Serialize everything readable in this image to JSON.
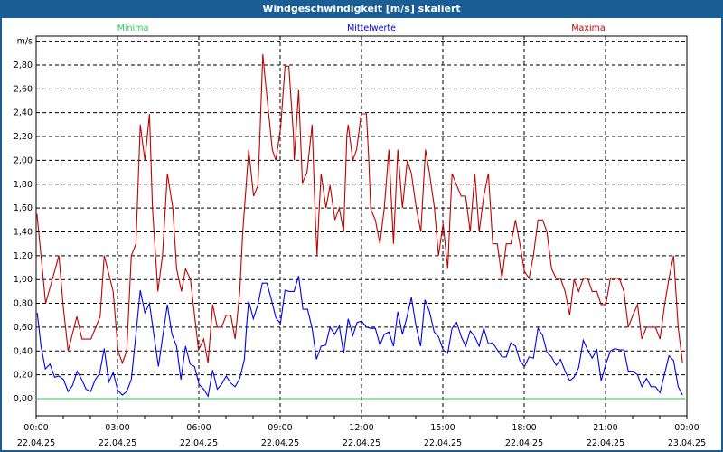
{
  "window": {
    "title": "Windgeschwindigkeit [m/s] skaliert"
  },
  "chart_data": {
    "type": "line",
    "title": "Windgeschwindigkeit [m/s] skaliert",
    "ylabel": "m/s",
    "xlabel": "",
    "ylim": [
      0,
      3.0
    ],
    "xlim_hours": [
      0,
      24
    ],
    "grid": true,
    "y_ticks": [
      "0,00",
      "0,20",
      "0,40",
      "0,60",
      "0,80",
      "1,00",
      "1,20",
      "1,40",
      "1,60",
      "1,80",
      "2,00",
      "2,20",
      "2,40",
      "2,60",
      "2,80"
    ],
    "x_ticks": [
      {
        "time": "00:00",
        "date": "22.04.25"
      },
      {
        "time": "03:00",
        "date": "22.04.25"
      },
      {
        "time": "06:00",
        "date": "22.04.25"
      },
      {
        "time": "09:00",
        "date": "22.04.25"
      },
      {
        "time": "12:00",
        "date": "22.04.25"
      },
      {
        "time": "15:00",
        "date": "22.04.25"
      },
      {
        "time": "18:00",
        "date": "22.04.25"
      },
      {
        "time": "21:00",
        "date": "22.04.25"
      },
      {
        "time": "00:00",
        "date": "23.04.25"
      }
    ],
    "legend_placement": "top",
    "series": [
      {
        "name": "Minima",
        "color": "#22cc55",
        "points": [
          [
            0,
            0
          ],
          [
            23.84,
            0
          ]
        ]
      },
      {
        "name": "Mittelwerte",
        "color": "#0000ee",
        "points": [
          [
            0.04,
            0.72
          ],
          [
            0.18,
            0.44
          ],
          [
            0.34,
            0.25
          ],
          [
            0.51,
            0.29
          ],
          [
            0.68,
            0.18
          ],
          [
            0.84,
            0.19
          ],
          [
            1.01,
            0.16
          ],
          [
            1.18,
            0.06
          ],
          [
            1.34,
            0.11
          ],
          [
            1.51,
            0.23
          ],
          [
            1.68,
            0.16
          ],
          [
            1.84,
            0.08
          ],
          [
            2.01,
            0.06
          ],
          [
            2.18,
            0.16
          ],
          [
            2.34,
            0.21
          ],
          [
            2.51,
            0.42
          ],
          [
            2.68,
            0.14
          ],
          [
            2.84,
            0.22
          ],
          [
            3.01,
            0.07
          ],
          [
            3.18,
            0.03
          ],
          [
            3.34,
            0.06
          ],
          [
            3.51,
            0.16
          ],
          [
            3.68,
            0.54
          ],
          [
            3.84,
            0.91
          ],
          [
            4.01,
            0.72
          ],
          [
            4.18,
            0.8
          ],
          [
            4.34,
            0.54
          ],
          [
            4.51,
            0.27
          ],
          [
            4.68,
            0.54
          ],
          [
            4.84,
            0.79
          ],
          [
            5.01,
            0.54
          ],
          [
            5.18,
            0.44
          ],
          [
            5.34,
            0.16
          ],
          [
            5.51,
            0.44
          ],
          [
            5.68,
            0.29
          ],
          [
            5.84,
            0.27
          ],
          [
            6.01,
            0.12
          ],
          [
            6.18,
            0.08
          ],
          [
            6.34,
            0.02
          ],
          [
            6.51,
            0.24
          ],
          [
            6.68,
            0.08
          ],
          [
            6.84,
            0.12
          ],
          [
            7.01,
            0.19
          ],
          [
            7.18,
            0.13
          ],
          [
            7.34,
            0.1
          ],
          [
            7.51,
            0.17
          ],
          [
            7.68,
            0.33
          ],
          [
            7.77,
            0.64
          ],
          [
            7.84,
            0.82
          ],
          [
            8.01,
            0.67
          ],
          [
            8.18,
            0.79
          ],
          [
            8.34,
            0.97
          ],
          [
            8.51,
            0.97
          ],
          [
            8.68,
            0.83
          ],
          [
            8.84,
            0.68
          ],
          [
            9.01,
            0.63
          ],
          [
            9.18,
            0.91
          ],
          [
            9.34,
            0.9
          ],
          [
            9.51,
            0.9
          ],
          [
            9.68,
            1.03
          ],
          [
            9.84,
            0.75
          ],
          [
            10.01,
            0.75
          ],
          [
            10.18,
            0.59
          ],
          [
            10.34,
            0.33
          ],
          [
            10.51,
            0.44
          ],
          [
            10.68,
            0.45
          ],
          [
            10.84,
            0.6
          ],
          [
            11.01,
            0.54
          ],
          [
            11.18,
            0.61
          ],
          [
            11.34,
            0.38
          ],
          [
            11.51,
            0.67
          ],
          [
            11.68,
            0.53
          ],
          [
            11.84,
            0.64
          ],
          [
            12.01,
            0.65
          ],
          [
            12.18,
            0.6
          ],
          [
            12.34,
            0.59
          ],
          [
            12.51,
            0.59
          ],
          [
            12.68,
            0.45
          ],
          [
            12.84,
            0.54
          ],
          [
            13.01,
            0.56
          ],
          [
            13.18,
            0.44
          ],
          [
            13.34,
            0.73
          ],
          [
            13.51,
            0.54
          ],
          [
            13.68,
            0.69
          ],
          [
            13.84,
            0.85
          ],
          [
            14.01,
            0.61
          ],
          [
            14.18,
            0.44
          ],
          [
            14.34,
            0.83
          ],
          [
            14.51,
            0.73
          ],
          [
            14.68,
            0.56
          ],
          [
            14.84,
            0.52
          ],
          [
            15.01,
            0.41
          ],
          [
            15.18,
            0.38
          ],
          [
            15.34,
            0.59
          ],
          [
            15.51,
            0.64
          ],
          [
            15.68,
            0.52
          ],
          [
            15.84,
            0.44
          ],
          [
            16.01,
            0.57
          ],
          [
            16.18,
            0.52
          ],
          [
            16.34,
            0.44
          ],
          [
            16.51,
            0.59
          ],
          [
            16.68,
            0.46
          ],
          [
            16.84,
            0.47
          ],
          [
            17.01,
            0.41
          ],
          [
            17.18,
            0.35
          ],
          [
            17.34,
            0.35
          ],
          [
            17.51,
            0.47
          ],
          [
            17.68,
            0.44
          ],
          [
            17.84,
            0.32
          ],
          [
            18.01,
            0.27
          ],
          [
            18.18,
            0.35
          ],
          [
            18.34,
            0.34
          ],
          [
            18.51,
            0.59
          ],
          [
            18.68,
            0.53
          ],
          [
            18.84,
            0.39
          ],
          [
            19.01,
            0.35
          ],
          [
            19.18,
            0.28
          ],
          [
            19.34,
            0.33
          ],
          [
            19.51,
            0.23
          ],
          [
            19.68,
            0.15
          ],
          [
            19.84,
            0.18
          ],
          [
            20.01,
            0.26
          ],
          [
            20.18,
            0.49
          ],
          [
            20.34,
            0.41
          ],
          [
            20.51,
            0.34
          ],
          [
            20.68,
            0.41
          ],
          [
            20.84,
            0.15
          ],
          [
            21.01,
            0.29
          ],
          [
            21.18,
            0.4
          ],
          [
            21.34,
            0.42
          ],
          [
            21.51,
            0.41
          ],
          [
            21.68,
            0.41
          ],
          [
            21.84,
            0.23
          ],
          [
            22.01,
            0.23
          ],
          [
            22.18,
            0.2
          ],
          [
            22.34,
            0.1
          ],
          [
            22.51,
            0.17
          ],
          [
            22.68,
            0.1
          ],
          [
            22.84,
            0.1
          ],
          [
            23.01,
            0.05
          ],
          [
            23.18,
            0.21
          ],
          [
            23.34,
            0.36
          ],
          [
            23.51,
            0.32
          ],
          [
            23.68,
            0.1
          ],
          [
            23.84,
            0.03
          ]
        ]
      },
      {
        "name": "Maxima",
        "color": "#c00000",
        "points": [
          [
            0.03,
            1.55
          ],
          [
            0.35,
            0.8
          ],
          [
            0.84,
            1.2
          ],
          [
            1.0,
            0.77
          ],
          [
            1.18,
            0.4
          ],
          [
            1.5,
            0.69
          ],
          [
            1.69,
            0.5
          ],
          [
            2.02,
            0.5
          ],
          [
            2.36,
            0.69
          ],
          [
            2.51,
            1.2
          ],
          [
            2.84,
            0.9
          ],
          [
            3.02,
            0.4
          ],
          [
            3.18,
            0.3
          ],
          [
            3.34,
            0.4
          ],
          [
            3.51,
            1.2
          ],
          [
            3.68,
            1.3
          ],
          [
            3.84,
            2.3
          ],
          [
            4.01,
            2.0
          ],
          [
            4.18,
            2.39
          ],
          [
            4.29,
            1.6
          ],
          [
            4.49,
            0.9
          ],
          [
            4.66,
            1.2
          ],
          [
            4.84,
            1.89
          ],
          [
            5.04,
            1.6
          ],
          [
            5.18,
            1.09
          ],
          [
            5.36,
            0.9
          ],
          [
            5.51,
            1.09
          ],
          [
            5.69,
            1.0
          ],
          [
            5.99,
            0.41
          ],
          [
            6.18,
            0.5
          ],
          [
            6.34,
            0.3
          ],
          [
            6.51,
            0.79
          ],
          [
            6.68,
            0.6
          ],
          [
            6.84,
            0.6
          ],
          [
            7.01,
            0.7
          ],
          [
            7.18,
            0.7
          ],
          [
            7.34,
            0.5
          ],
          [
            7.51,
            0.9
          ],
          [
            7.62,
            1.4
          ],
          [
            7.71,
            1.68
          ],
          [
            7.8,
            1.96
          ],
          [
            7.84,
            2.09
          ],
          [
            7.96,
            1.83
          ],
          [
            8.02,
            1.7
          ],
          [
            8.18,
            1.79
          ],
          [
            8.24,
            2.13
          ],
          [
            8.36,
            2.89
          ],
          [
            8.43,
            2.72
          ],
          [
            8.58,
            2.38
          ],
          [
            8.71,
            2.09
          ],
          [
            8.84,
            2.0
          ],
          [
            9.02,
            2.28
          ],
          [
            9.18,
            2.79
          ],
          [
            9.32,
            2.79
          ],
          [
            9.49,
            2.21
          ],
          [
            9.52,
            2.0
          ],
          [
            9.68,
            2.59
          ],
          [
            9.82,
            1.81
          ],
          [
            9.99,
            1.9
          ],
          [
            10.18,
            2.3
          ],
          [
            10.29,
            1.55
          ],
          [
            10.36,
            1.2
          ],
          [
            10.43,
            1.55
          ],
          [
            10.51,
            1.89
          ],
          [
            10.69,
            1.6
          ],
          [
            10.84,
            1.79
          ],
          [
            11.02,
            1.5
          ],
          [
            11.18,
            1.6
          ],
          [
            11.34,
            1.4
          ],
          [
            11.46,
            2.21
          ],
          [
            11.51,
            2.3
          ],
          [
            11.68,
            2.0
          ],
          [
            11.82,
            2.09
          ],
          [
            11.99,
            2.39
          ],
          [
            12.18,
            2.39
          ],
          [
            12.27,
            2.0
          ],
          [
            12.34,
            1.59
          ],
          [
            12.51,
            1.5
          ],
          [
            12.68,
            1.3
          ],
          [
            12.84,
            1.6
          ],
          [
            13.01,
            2.09
          ],
          [
            13.18,
            1.3
          ],
          [
            13.34,
            2.09
          ],
          [
            13.51,
            1.6
          ],
          [
            13.69,
            2.0
          ],
          [
            13.84,
            1.89
          ],
          [
            14.02,
            1.6
          ],
          [
            14.19,
            1.4
          ],
          [
            14.36,
            2.09
          ],
          [
            14.51,
            1.89
          ],
          [
            14.69,
            1.6
          ],
          [
            14.84,
            1.2
          ],
          [
            15.01,
            1.47
          ],
          [
            15.18,
            1.09
          ],
          [
            15.34,
            1.89
          ],
          [
            15.51,
            1.79
          ],
          [
            15.68,
            1.7
          ],
          [
            15.84,
            1.7
          ],
          [
            16.01,
            1.4
          ],
          [
            16.18,
            1.89
          ],
          [
            16.34,
            1.4
          ],
          [
            16.51,
            1.7
          ],
          [
            16.68,
            1.89
          ],
          [
            16.84,
            1.3
          ],
          [
            17.01,
            1.3
          ],
          [
            17.18,
            1.01
          ],
          [
            17.34,
            1.3
          ],
          [
            17.51,
            1.3
          ],
          [
            17.68,
            1.5
          ],
          [
            17.84,
            1.3
          ],
          [
            18.01,
            1.07
          ],
          [
            18.18,
            1.01
          ],
          [
            18.34,
            1.2
          ],
          [
            18.51,
            1.5
          ],
          [
            18.68,
            1.5
          ],
          [
            18.84,
            1.4
          ],
          [
            19.01,
            1.09
          ],
          [
            19.18,
            1.01
          ],
          [
            19.34,
            1.01
          ],
          [
            19.51,
            0.9
          ],
          [
            19.68,
            0.7
          ],
          [
            19.84,
            1.0
          ],
          [
            20.01,
            0.9
          ],
          [
            20.18,
            1.01
          ],
          [
            20.34,
            1.01
          ],
          [
            20.51,
            0.9
          ],
          [
            20.68,
            0.9
          ],
          [
            20.84,
            0.79
          ],
          [
            21.01,
            0.79
          ],
          [
            21.18,
            1.01
          ],
          [
            21.34,
            1.01
          ],
          [
            21.51,
            1.01
          ],
          [
            21.68,
            0.9
          ],
          [
            21.84,
            0.6
          ],
          [
            22.01,
            0.7
          ],
          [
            22.18,
            0.79
          ],
          [
            22.34,
            0.5
          ],
          [
            22.51,
            0.6
          ],
          [
            22.68,
            0.6
          ],
          [
            22.84,
            0.6
          ],
          [
            23.01,
            0.5
          ],
          [
            23.18,
            0.79
          ],
          [
            23.34,
            1.01
          ],
          [
            23.51,
            1.2
          ],
          [
            23.68,
            0.6
          ],
          [
            23.84,
            0.3
          ]
        ]
      }
    ]
  }
}
